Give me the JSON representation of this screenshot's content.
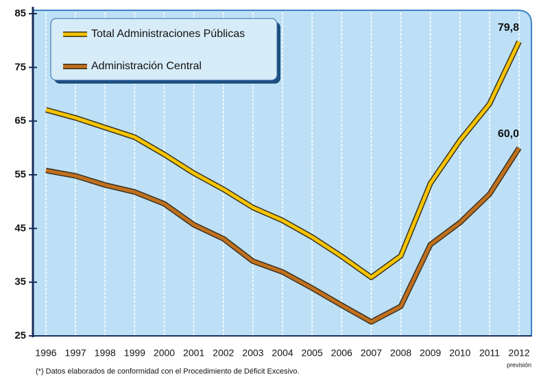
{
  "chart_data": {
    "type": "line",
    "categories": [
      "1996",
      "1997",
      "1998",
      "1999",
      "2000",
      "2001",
      "2002",
      "2003",
      "2004",
      "2005",
      "2006",
      "2007",
      "2008",
      "2009",
      "2010",
      "2011",
      "2012"
    ],
    "x_note": "previsión",
    "series": [
      {
        "name": "Total Administraciones Públicas",
        "color": "#f5c400",
        "values": [
          67.1,
          65.6,
          63.8,
          62.0,
          58.8,
          55.3,
          52.3,
          48.9,
          46.5,
          43.4,
          39.8,
          35.9,
          39.9,
          53.4,
          61.4,
          68.2,
          79.8
        ],
        "value_labels": [
          null,
          null,
          null,
          null,
          null,
          null,
          null,
          null,
          null,
          null,
          null,
          null,
          null,
          null,
          null,
          null,
          "79,8"
        ]
      },
      {
        "name": "Administración Central",
        "color": "#c0701e",
        "values": [
          55.8,
          54.8,
          53.1,
          51.8,
          49.6,
          45.7,
          43.1,
          38.9,
          36.9,
          33.9,
          30.7,
          27.6,
          30.5,
          42.0,
          46.1,
          51.4,
          60.0
        ],
        "value_labels": [
          null,
          null,
          null,
          null,
          null,
          null,
          null,
          null,
          null,
          null,
          null,
          null,
          null,
          null,
          null,
          null,
          "60,0"
        ]
      }
    ],
    "ylim": [
      25,
      85
    ],
    "yticks": [
      25,
      35,
      45,
      55,
      65,
      75,
      85
    ],
    "grid": true,
    "legend": "top-left",
    "footnote": "(*) Datos elaborados de conformidad con el Procedimiento de Déficit Excesivo."
  }
}
